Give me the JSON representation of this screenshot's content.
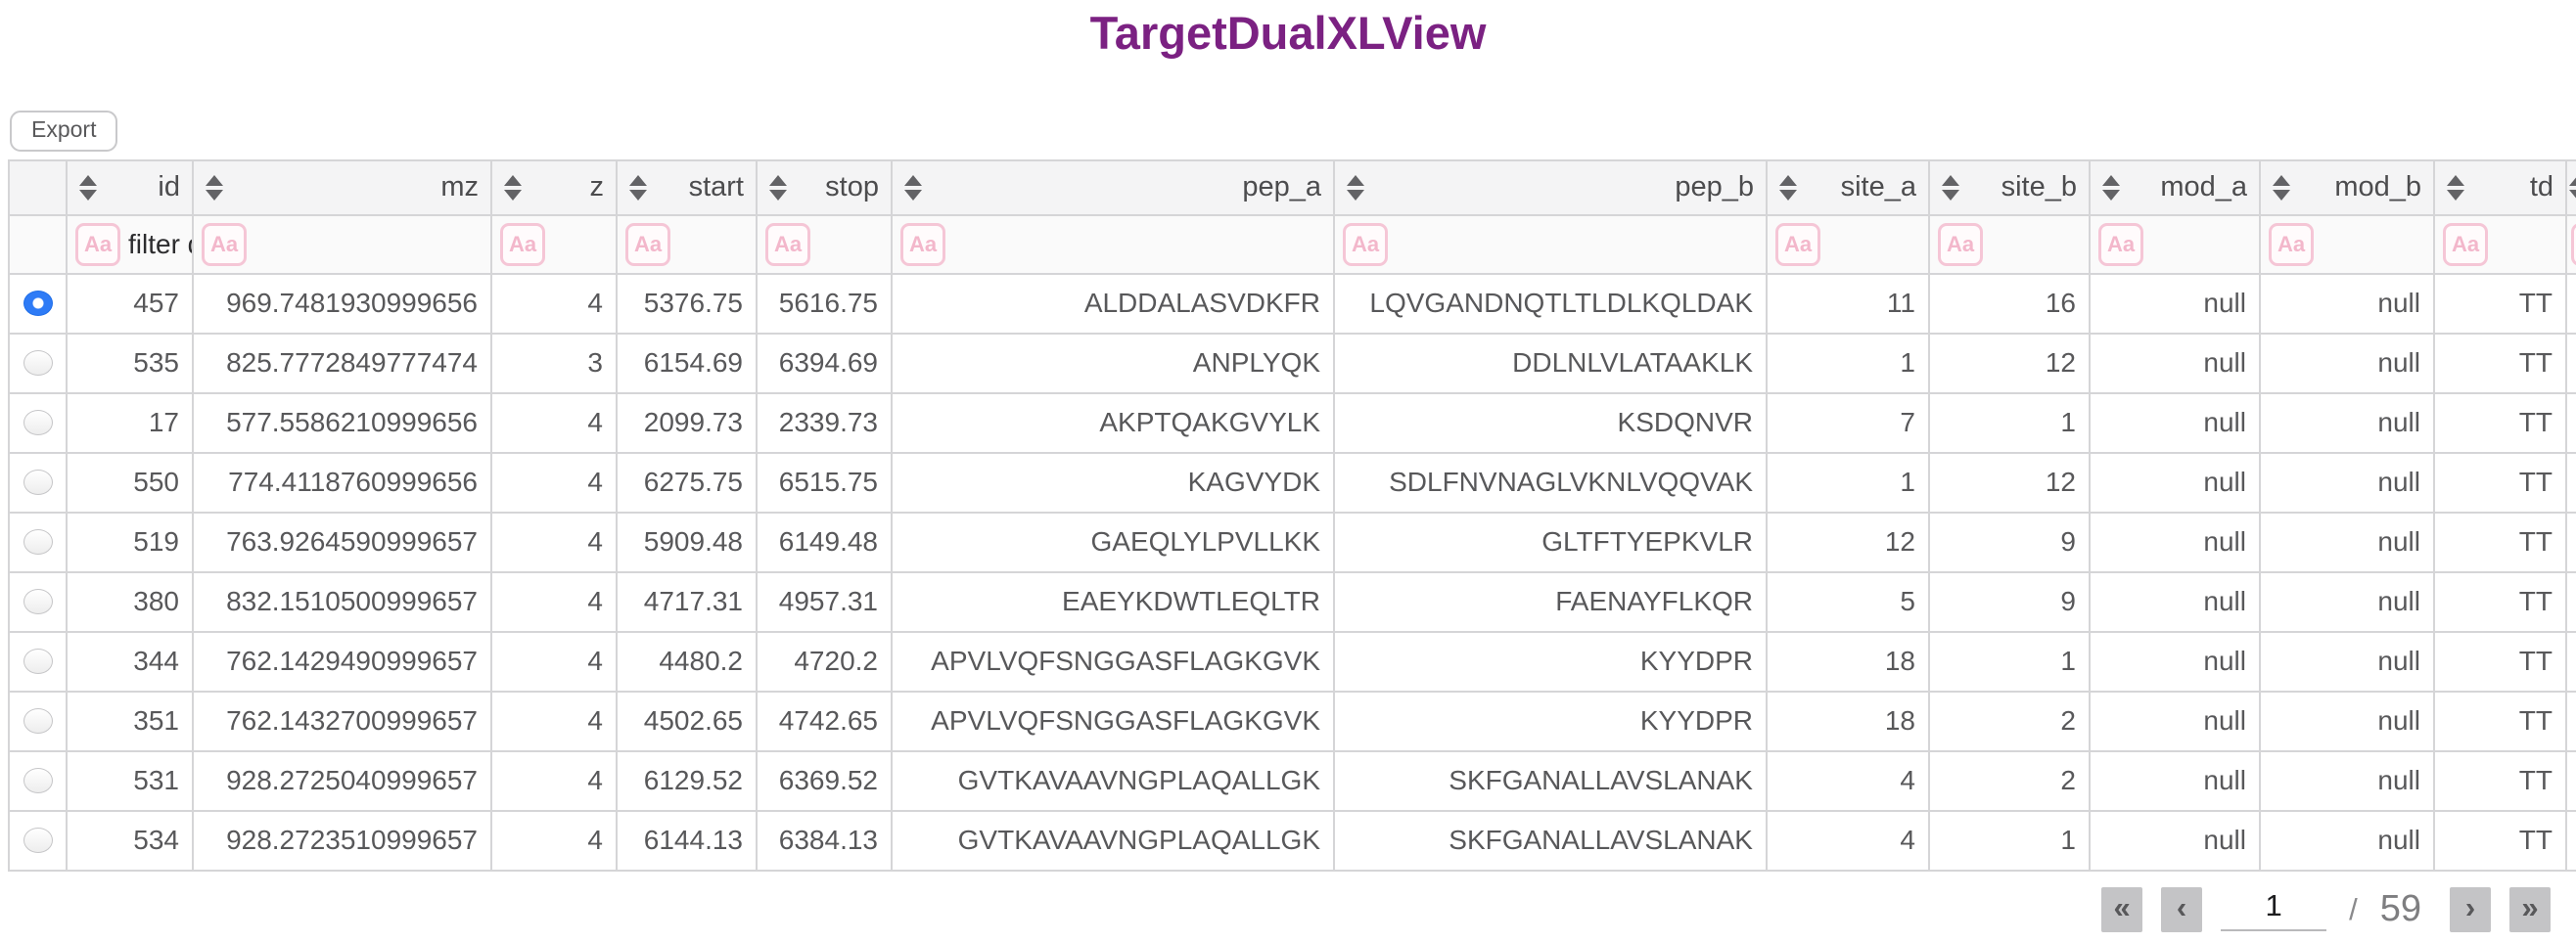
{
  "title": "TargetDualXLView",
  "toolbar": {
    "export_label": "Export"
  },
  "table": {
    "columns": [
      {
        "key": "id",
        "label": "id"
      },
      {
        "key": "mz",
        "label": "mz"
      },
      {
        "key": "z",
        "label": "z"
      },
      {
        "key": "start",
        "label": "start"
      },
      {
        "key": "stop",
        "label": "stop"
      },
      {
        "key": "pep_a",
        "label": "pep_a"
      },
      {
        "key": "pep_b",
        "label": "pep_b"
      },
      {
        "key": "site_a",
        "label": "site_a"
      },
      {
        "key": "site_b",
        "label": "site_b"
      },
      {
        "key": "mod_a",
        "label": "mod_a"
      },
      {
        "key": "mod_b",
        "label": "mod_b"
      },
      {
        "key": "td",
        "label": "td"
      }
    ],
    "filter_row": {
      "icon_label": "Aa",
      "id_filter_value": "filter da"
    },
    "rows": [
      {
        "selected": true,
        "id": "457",
        "mz": "969.7481930999656",
        "z": "4",
        "start": "5376.75",
        "stop": "5616.75",
        "pep_a": "ALDDALASVDKFR",
        "pep_b": "LQVGANDNQTLTLDLKQLDAK",
        "site_a": "11",
        "site_b": "16",
        "mod_a": "null",
        "mod_b": "null",
        "td": "TT"
      },
      {
        "selected": false,
        "id": "535",
        "mz": "825.7772849777474",
        "z": "3",
        "start": "6154.69",
        "stop": "6394.69",
        "pep_a": "ANPLYQK",
        "pep_b": "DDLNLVLATAAKLK",
        "site_a": "1",
        "site_b": "12",
        "mod_a": "null",
        "mod_b": "null",
        "td": "TT"
      },
      {
        "selected": false,
        "id": "17",
        "mz": "577.5586210999656",
        "z": "4",
        "start": "2099.73",
        "stop": "2339.73",
        "pep_a": "AKPTQAKGVYLK",
        "pep_b": "KSDQNVR",
        "site_a": "7",
        "site_b": "1",
        "mod_a": "null",
        "mod_b": "null",
        "td": "TT"
      },
      {
        "selected": false,
        "id": "550",
        "mz": "774.4118760999656",
        "z": "4",
        "start": "6275.75",
        "stop": "6515.75",
        "pep_a": "KAGVYDK",
        "pep_b": "SDLFNVNAGLVKNLVQQVAK",
        "site_a": "1",
        "site_b": "12",
        "mod_a": "null",
        "mod_b": "null",
        "td": "TT"
      },
      {
        "selected": false,
        "id": "519",
        "mz": "763.9264590999657",
        "z": "4",
        "start": "5909.48",
        "stop": "6149.48",
        "pep_a": "GAEQLYLPVLLKK",
        "pep_b": "GLTFTYEPKVLR",
        "site_a": "12",
        "site_b": "9",
        "mod_a": "null",
        "mod_b": "null",
        "td": "TT"
      },
      {
        "selected": false,
        "id": "380",
        "mz": "832.1510500999657",
        "z": "4",
        "start": "4717.31",
        "stop": "4957.31",
        "pep_a": "EAEYKDWTLEQLTR",
        "pep_b": "FAENAYFLKQR",
        "site_a": "5",
        "site_b": "9",
        "mod_a": "null",
        "mod_b": "null",
        "td": "TT"
      },
      {
        "selected": false,
        "id": "344",
        "mz": "762.1429490999657",
        "z": "4",
        "start": "4480.2",
        "stop": "4720.2",
        "pep_a": "APVLVQFSNGGASFLAGKGVK",
        "pep_b": "KYYDPR",
        "site_a": "18",
        "site_b": "1",
        "mod_a": "null",
        "mod_b": "null",
        "td": "TT"
      },
      {
        "selected": false,
        "id": "351",
        "mz": "762.1432700999657",
        "z": "4",
        "start": "4502.65",
        "stop": "4742.65",
        "pep_a": "APVLVQFSNGGASFLAGKGVK",
        "pep_b": "KYYDPR",
        "site_a": "18",
        "site_b": "2",
        "mod_a": "null",
        "mod_b": "null",
        "td": "TT"
      },
      {
        "selected": false,
        "id": "531",
        "mz": "928.2725040999657",
        "z": "4",
        "start": "6129.52",
        "stop": "6369.52",
        "pep_a": "GVTKAVAAVNGPLAQALLGK",
        "pep_b": "SKFGANALLAVSLANAK",
        "site_a": "4",
        "site_b": "2",
        "mod_a": "null",
        "mod_b": "null",
        "td": "TT"
      },
      {
        "selected": false,
        "id": "534",
        "mz": "928.2723510999657",
        "z": "4",
        "start": "6144.13",
        "stop": "6384.13",
        "pep_a": "GVTKAVAAVNGPLAQALLGK",
        "pep_b": "SKFGANALLAVSLANAK",
        "site_a": "4",
        "site_b": "1",
        "mod_a": "null",
        "mod_b": "null",
        "td": "TT"
      }
    ]
  },
  "pagination": {
    "first_label": "«",
    "prev_label": "‹",
    "current_page": "1",
    "separator": "/",
    "total_pages": "59",
    "next_label": "›",
    "last_label": "»"
  },
  "colors": {
    "title_purple": "#7B2182",
    "selected_radio_blue": "#2E7BF6",
    "filter_icon_pink": "#F3B7CB"
  }
}
